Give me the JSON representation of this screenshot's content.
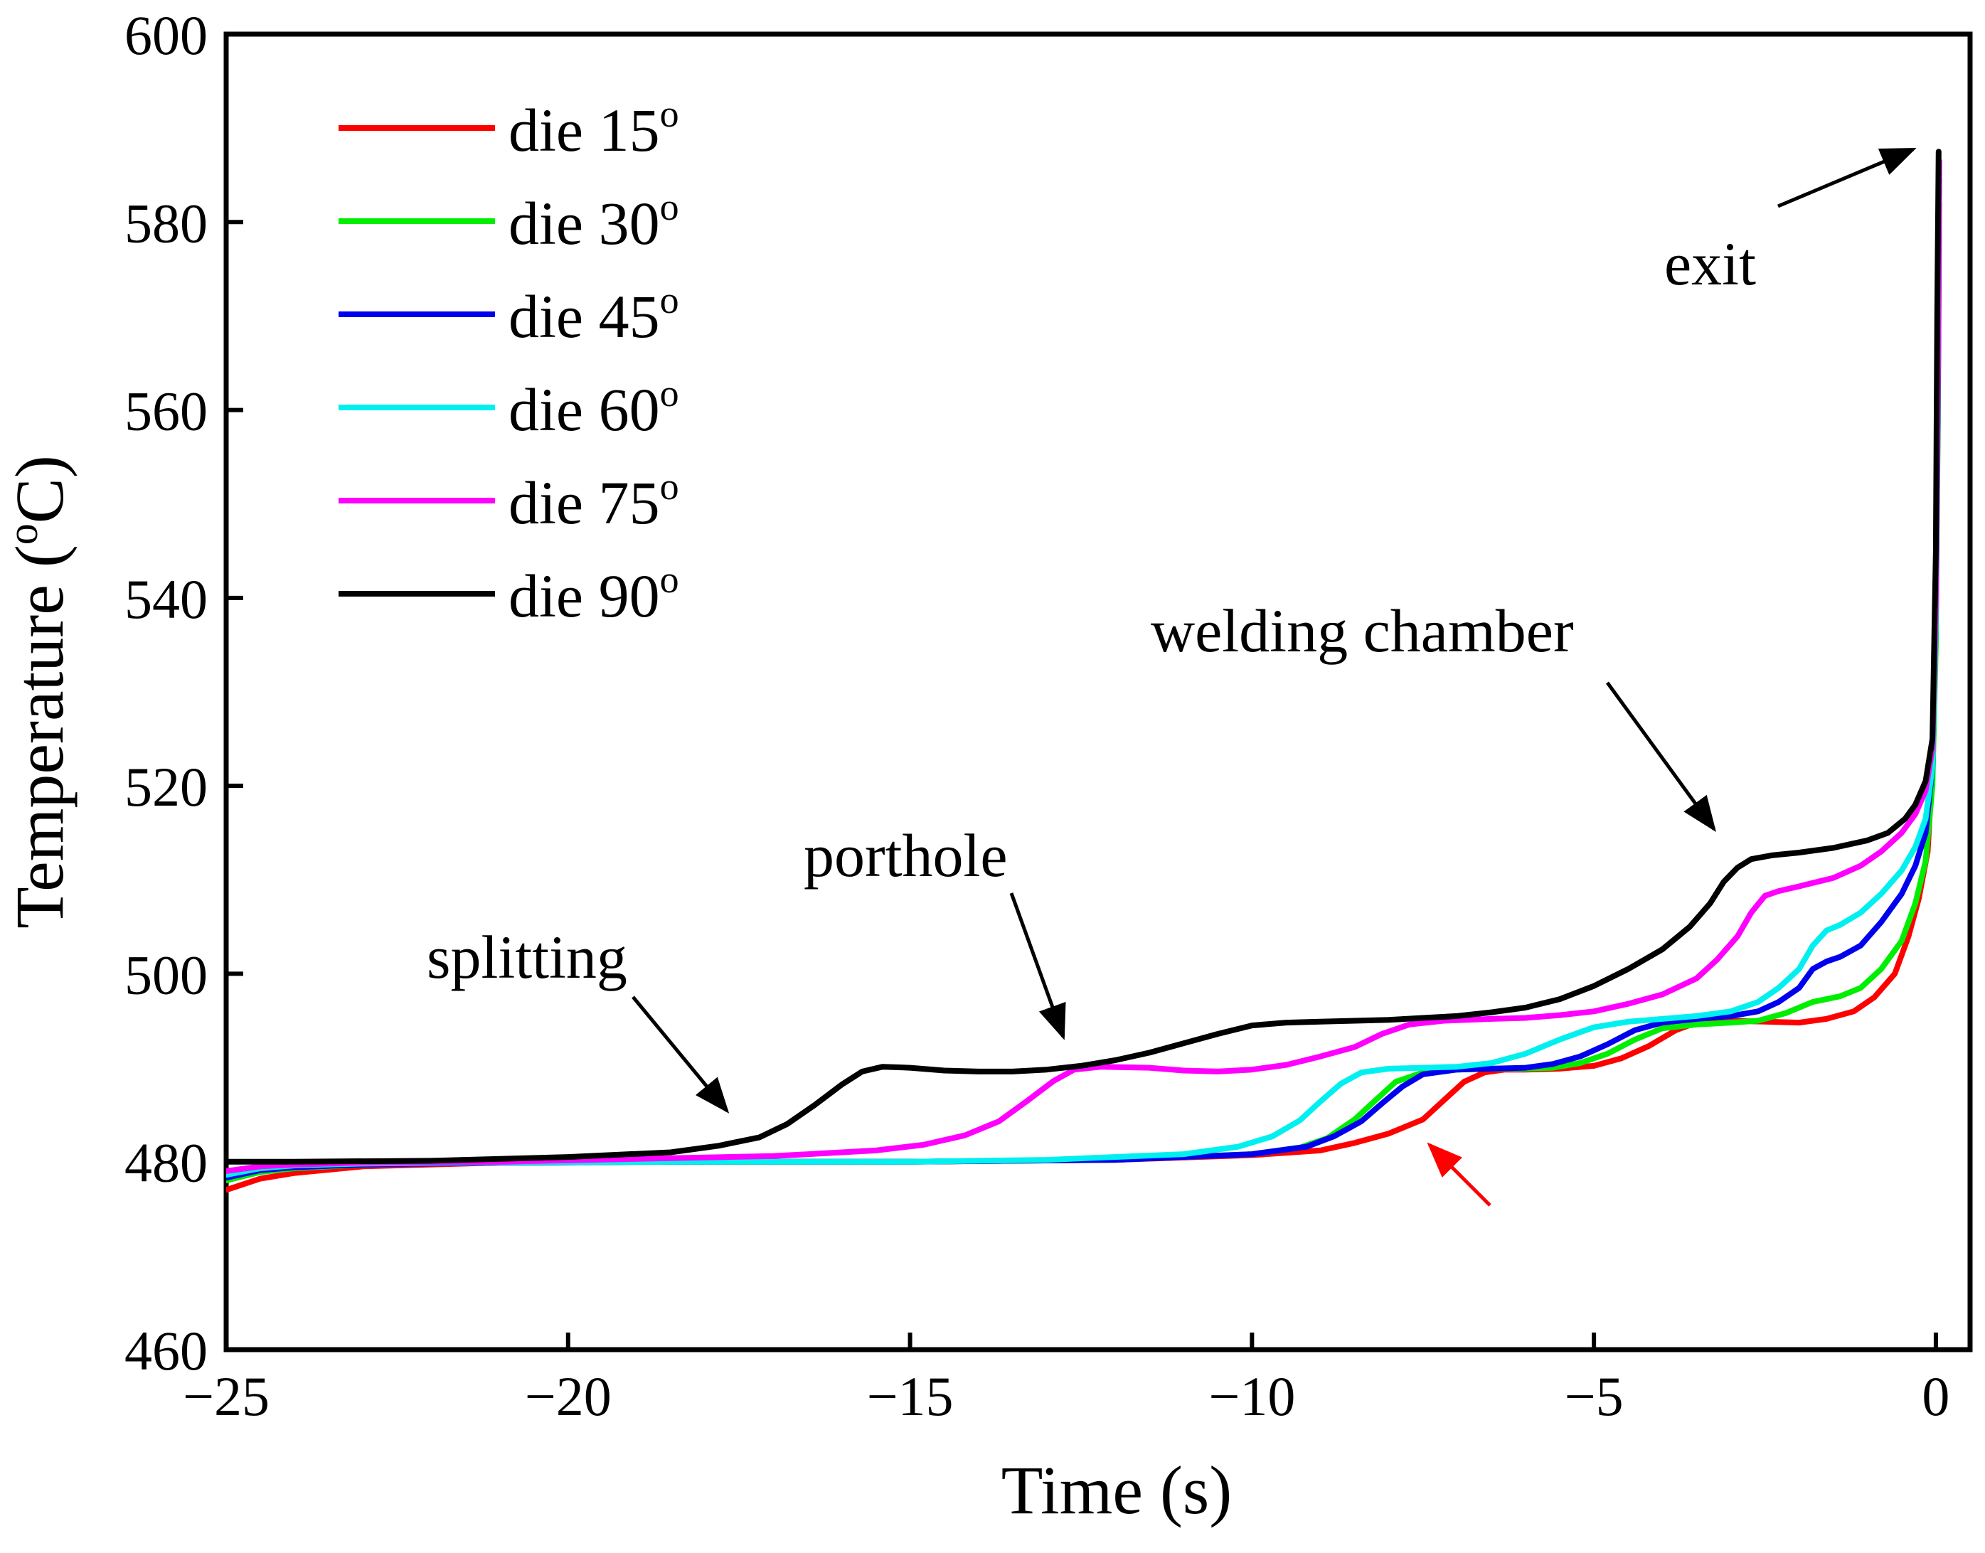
{
  "chart_data": {
    "type": "line",
    "xlabel": "Time (s)",
    "ylabel_parts": {
      "before": "Temperature (",
      "sup": "o",
      "after": "C)"
    },
    "xlim": [
      -25,
      0.5
    ],
    "ylim": [
      460,
      600
    ],
    "xticks": [
      -25,
      -20,
      -15,
      -10,
      -5,
      0
    ],
    "yticks": [
      460,
      480,
      500,
      520,
      540,
      560,
      580,
      600
    ],
    "xtick_labels": [
      "−25",
      "−20",
      "−15",
      "−10",
      "−5",
      "0"
    ],
    "ytick_labels": [
      "460",
      "480",
      "500",
      "520",
      "540",
      "560",
      "580",
      "600"
    ],
    "legend_position": "top-left",
    "series": [
      {
        "name": "die 15",
        "label_text": "die 15",
        "sup": "o",
        "color": "#ff0000",
        "points": [
          [
            -25,
            477
          ],
          [
            -24.5,
            478.2
          ],
          [
            -24,
            478.8
          ],
          [
            -23,
            479.5
          ],
          [
            -21,
            479.9
          ],
          [
            -18,
            480
          ],
          [
            -15,
            480
          ],
          [
            -12,
            480.2
          ],
          [
            -10,
            480.7
          ],
          [
            -9,
            481.2
          ],
          [
            -8.5,
            482
          ],
          [
            -8,
            483
          ],
          [
            -7.5,
            484.5
          ],
          [
            -7.2,
            486.5
          ],
          [
            -6.9,
            488.5
          ],
          [
            -6.6,
            489.5
          ],
          [
            -6.3,
            489.8
          ],
          [
            -6,
            489.8
          ],
          [
            -5.5,
            489.9
          ],
          [
            -5,
            490.2
          ],
          [
            -4.6,
            491
          ],
          [
            -4.2,
            492.3
          ],
          [
            -3.8,
            494
          ],
          [
            -3.5,
            494.8
          ],
          [
            -3,
            495
          ],
          [
            -2.5,
            494.9
          ],
          [
            -2,
            494.8
          ],
          [
            -1.6,
            495.2
          ],
          [
            -1.2,
            496
          ],
          [
            -0.9,
            497.5
          ],
          [
            -0.6,
            500
          ],
          [
            -0.4,
            504
          ],
          [
            -0.25,
            508
          ],
          [
            -0.12,
            513
          ],
          [
            -0.05,
            522
          ],
          [
            0,
            540
          ],
          [
            0.03,
            560
          ],
          [
            0.05,
            582
          ]
        ]
      },
      {
        "name": "die 30",
        "label_text": "die 30",
        "sup": "o",
        "color": "#00ee00",
        "points": [
          [
            -25,
            478
          ],
          [
            -24.5,
            478.9
          ],
          [
            -24,
            479.3
          ],
          [
            -23,
            479.7
          ],
          [
            -21,
            479.9
          ],
          [
            -18,
            480
          ],
          [
            -15,
            480
          ],
          [
            -12,
            480.2
          ],
          [
            -10,
            480.8
          ],
          [
            -9.3,
            481.5
          ],
          [
            -8.9,
            482.5
          ],
          [
            -8.5,
            484.5
          ],
          [
            -8.2,
            486.5
          ],
          [
            -7.9,
            488.5
          ],
          [
            -7.5,
            489.5
          ],
          [
            -7,
            489.8
          ],
          [
            -6.5,
            489.9
          ],
          [
            -6,
            489.9
          ],
          [
            -5.6,
            490
          ],
          [
            -5.2,
            490.5
          ],
          [
            -4.8,
            491.5
          ],
          [
            -4.4,
            493
          ],
          [
            -4,
            494.2
          ],
          [
            -3.5,
            494.6
          ],
          [
            -3,
            494.8
          ],
          [
            -2.6,
            495
          ],
          [
            -2.2,
            495.8
          ],
          [
            -1.8,
            497
          ],
          [
            -1.4,
            497.6
          ],
          [
            -1.1,
            498.5
          ],
          [
            -0.8,
            500.5
          ],
          [
            -0.5,
            503.5
          ],
          [
            -0.3,
            507.5
          ],
          [
            -0.15,
            512
          ],
          [
            -0.05,
            520
          ],
          [
            0,
            535
          ],
          [
            0.03,
            560
          ],
          [
            0.05,
            583.5
          ]
        ]
      },
      {
        "name": "die 45",
        "label_text": "die 45",
        "sup": "o",
        "color": "#0000ee",
        "points": [
          [
            -25,
            478.3
          ],
          [
            -24.5,
            479.1
          ],
          [
            -24,
            479.4
          ],
          [
            -23,
            479.7
          ],
          [
            -21,
            479.9
          ],
          [
            -18,
            480
          ],
          [
            -15,
            480
          ],
          [
            -12,
            480.2
          ],
          [
            -10,
            480.8
          ],
          [
            -9.2,
            481.6
          ],
          [
            -8.8,
            482.7
          ],
          [
            -8.4,
            484.3
          ],
          [
            -8.1,
            486.2
          ],
          [
            -7.8,
            488
          ],
          [
            -7.5,
            489.3
          ],
          [
            -7,
            489.8
          ],
          [
            -6.5,
            489.9
          ],
          [
            -6,
            490
          ],
          [
            -5.6,
            490.4
          ],
          [
            -5.2,
            491.2
          ],
          [
            -4.8,
            492.5
          ],
          [
            -4.4,
            494
          ],
          [
            -4,
            494.8
          ],
          [
            -3.5,
            495.2
          ],
          [
            -3,
            495.5
          ],
          [
            -2.6,
            496
          ],
          [
            -2.3,
            497
          ],
          [
            -2,
            498.5
          ],
          [
            -1.8,
            500.5
          ],
          [
            -1.6,
            501.3
          ],
          [
            -1.4,
            501.8
          ],
          [
            -1.1,
            503
          ],
          [
            -0.8,
            505.5
          ],
          [
            -0.5,
            508.5
          ],
          [
            -0.3,
            511.5
          ],
          [
            -0.15,
            515
          ],
          [
            -0.05,
            522
          ],
          [
            0,
            538
          ],
          [
            0.03,
            562
          ],
          [
            0.05,
            584.5
          ]
        ]
      },
      {
        "name": "die 60",
        "label_text": "die 60",
        "sup": "o",
        "color": "#00f0f0",
        "points": [
          [
            -25,
            478.6
          ],
          [
            -24.5,
            479.3
          ],
          [
            -24,
            479.6
          ],
          [
            -23,
            479.8
          ],
          [
            -21,
            479.95
          ],
          [
            -18,
            480
          ],
          [
            -15,
            480
          ],
          [
            -13,
            480.2
          ],
          [
            -11,
            480.8
          ],
          [
            -10.2,
            481.6
          ],
          [
            -9.7,
            482.7
          ],
          [
            -9.3,
            484.4
          ],
          [
            -9,
            486.4
          ],
          [
            -8.7,
            488.3
          ],
          [
            -8.4,
            489.5
          ],
          [
            -8,
            489.9
          ],
          [
            -7.5,
            490
          ],
          [
            -7,
            490.1
          ],
          [
            -6.5,
            490.5
          ],
          [
            -6,
            491.5
          ],
          [
            -5.5,
            493
          ],
          [
            -5,
            494.3
          ],
          [
            -4.5,
            494.9
          ],
          [
            -4,
            495.2
          ],
          [
            -3.5,
            495.5
          ],
          [
            -3,
            496
          ],
          [
            -2.6,
            497
          ],
          [
            -2.3,
            498.5
          ],
          [
            -2,
            500.5
          ],
          [
            -1.8,
            503
          ],
          [
            -1.6,
            504.6
          ],
          [
            -1.4,
            505.2
          ],
          [
            -1.1,
            506.5
          ],
          [
            -0.8,
            508.5
          ],
          [
            -0.5,
            511
          ],
          [
            -0.3,
            513.5
          ],
          [
            -0.15,
            516.5
          ],
          [
            -0.05,
            522
          ],
          [
            0,
            538
          ],
          [
            0.03,
            565
          ],
          [
            0.05,
            585.5
          ]
        ]
      },
      {
        "name": "die 75",
        "label_text": "die 75",
        "sup": "o",
        "color": "#ff00ff",
        "points": [
          [
            -25,
            479
          ],
          [
            -24.5,
            479.5
          ],
          [
            -24,
            479.7
          ],
          [
            -23,
            479.9
          ],
          [
            -21,
            480
          ],
          [
            -19,
            480.3
          ],
          [
            -17,
            480.6
          ],
          [
            -15.5,
            481.2
          ],
          [
            -14.8,
            481.8
          ],
          [
            -14.2,
            482.8
          ],
          [
            -13.7,
            484.3
          ],
          [
            -13.3,
            486.4
          ],
          [
            -12.9,
            488.6
          ],
          [
            -12.6,
            489.8
          ],
          [
            -12.2,
            490.1
          ],
          [
            -11.5,
            490
          ],
          [
            -11,
            489.7
          ],
          [
            -10.5,
            489.6
          ],
          [
            -10,
            489.8
          ],
          [
            -9.5,
            490.3
          ],
          [
            -9,
            491.2
          ],
          [
            -8.5,
            492.2
          ],
          [
            -8.1,
            493.6
          ],
          [
            -7.7,
            494.6
          ],
          [
            -7.2,
            495
          ],
          [
            -6.5,
            495.2
          ],
          [
            -6,
            495.3
          ],
          [
            -5.5,
            495.6
          ],
          [
            -5,
            496
          ],
          [
            -4.5,
            496.8
          ],
          [
            -4,
            497.8
          ],
          [
            -3.5,
            499.5
          ],
          [
            -3.2,
            501.5
          ],
          [
            -2.9,
            504
          ],
          [
            -2.7,
            506.5
          ],
          [
            -2.5,
            508.3
          ],
          [
            -2.3,
            508.8
          ],
          [
            -2,
            509.3
          ],
          [
            -1.5,
            510.2
          ],
          [
            -1.1,
            511.5
          ],
          [
            -0.8,
            513
          ],
          [
            -0.5,
            515
          ],
          [
            -0.3,
            517
          ],
          [
            -0.15,
            519.5
          ],
          [
            -0.05,
            524
          ],
          [
            0,
            540
          ],
          [
            0.03,
            566
          ],
          [
            0.05,
            586.5
          ]
        ]
      },
      {
        "name": "die 90",
        "label_text": "die 90",
        "sup": "o",
        "color": "#000000",
        "points": [
          [
            -25,
            480
          ],
          [
            -24,
            480
          ],
          [
            -22,
            480.1
          ],
          [
            -20,
            480.5
          ],
          [
            -18.5,
            481
          ],
          [
            -17.8,
            481.7
          ],
          [
            -17.2,
            482.6
          ],
          [
            -16.8,
            484
          ],
          [
            -16.4,
            486
          ],
          [
            -16,
            488.2
          ],
          [
            -15.7,
            489.6
          ],
          [
            -15.4,
            490.1
          ],
          [
            -15,
            490
          ],
          [
            -14.5,
            489.7
          ],
          [
            -14,
            489.6
          ],
          [
            -13.5,
            489.6
          ],
          [
            -13,
            489.8
          ],
          [
            -12.5,
            490.2
          ],
          [
            -12,
            490.8
          ],
          [
            -11.5,
            491.6
          ],
          [
            -11,
            492.6
          ],
          [
            -10.5,
            493.6
          ],
          [
            -10,
            494.5
          ],
          [
            -9.5,
            494.8
          ],
          [
            -9,
            494.9
          ],
          [
            -8.5,
            495
          ],
          [
            -8,
            495.1
          ],
          [
            -7.5,
            495.3
          ],
          [
            -7,
            495.5
          ],
          [
            -6.5,
            495.9
          ],
          [
            -6,
            496.4
          ],
          [
            -5.5,
            497.3
          ],
          [
            -5,
            498.7
          ],
          [
            -4.5,
            500.5
          ],
          [
            -4,
            502.6
          ],
          [
            -3.6,
            505
          ],
          [
            -3.3,
            507.5
          ],
          [
            -3.1,
            509.8
          ],
          [
            -2.9,
            511.3
          ],
          [
            -2.7,
            512.2
          ],
          [
            -2.4,
            512.6
          ],
          [
            -2,
            512.9
          ],
          [
            -1.5,
            513.4
          ],
          [
            -1,
            514.2
          ],
          [
            -0.7,
            515
          ],
          [
            -0.45,
            516.5
          ],
          [
            -0.3,
            518
          ],
          [
            -0.15,
            520.5
          ],
          [
            -0.05,
            525
          ],
          [
            0,
            545
          ],
          [
            0.02,
            570
          ],
          [
            0.04,
            587.5
          ]
        ]
      }
    ],
    "annotations": [
      {
        "text": "splitting",
        "color": "#000000"
      },
      {
        "text": "porthole",
        "color": "#000000"
      },
      {
        "text": "welding chamber",
        "color": "#000000"
      },
      {
        "text": "exit",
        "color": "#000000"
      }
    ],
    "red_arrow_color": "#ff0000"
  }
}
